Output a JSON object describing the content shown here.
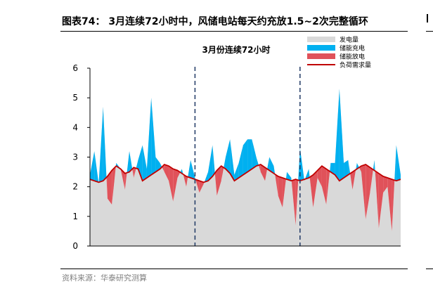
{
  "figure": {
    "title": "图表74： 3月连续72小时中，风储电站每天约充放1.5~2次完整循环",
    "source": "资料来源：华泰研究测算"
  },
  "chart_data": {
    "type": "area",
    "title": "3月份连续72小时",
    "xlabel": "",
    "ylabel": "",
    "ylim": [
      0,
      6
    ],
    "yticks": [
      0,
      1,
      2,
      3,
      4,
      5,
      6
    ],
    "grid": false,
    "legend_position": "top-right",
    "hours": 72,
    "day_dividers": [
      24,
      48
    ],
    "series": [
      {
        "name": "发电量",
        "kind": "area",
        "color": "#d9d9d9",
        "values": [
          2.4,
          3.2,
          2.1,
          4.7,
          1.6,
          1.4,
          2.8,
          2.6,
          1.9,
          3.2,
          2.3,
          2.9,
          3.4,
          2.6,
          5.0,
          3.0,
          2.8,
          2.5,
          2.2,
          1.5,
          2.3,
          2.6,
          2.0,
          2.9,
          2.3,
          1.8,
          2.1,
          2.5,
          3.4,
          1.7,
          2.2,
          3.0,
          3.6,
          2.4,
          2.8,
          3.4,
          3.6,
          3.6,
          3.0,
          2.5,
          2.2,
          3.0,
          2.7,
          1.7,
          1.3,
          2.5,
          2.3,
          0.7,
          3.3,
          2.2,
          2.6,
          1.3,
          2.3,
          2.0,
          1.4,
          2.8,
          2.8,
          5.3,
          2.8,
          2.9,
          1.9,
          2.8,
          2.5,
          0.9,
          1.8,
          2.9,
          0.6,
          1.8,
          2.0,
          0.5,
          3.4,
          2.4
        ]
      },
      {
        "name": "储能充电",
        "kind": "fill",
        "color": "#00b0f0"
      },
      {
        "name": "储能放电",
        "kind": "fill",
        "color": "#e0525a"
      },
      {
        "name": "负荷需求量",
        "kind": "line",
        "color": "#c00000",
        "values": [
          2.25,
          2.2,
          2.15,
          2.2,
          2.35,
          2.55,
          2.7,
          2.6,
          2.45,
          2.5,
          2.65,
          2.6,
          2.2,
          2.3,
          2.4,
          2.5,
          2.6,
          2.75,
          2.7,
          2.6,
          2.55,
          2.45,
          2.35,
          2.3,
          2.25,
          2.2,
          2.15,
          2.2,
          2.35,
          2.55,
          2.7,
          2.6,
          2.45,
          2.2,
          2.3,
          2.4,
          2.5,
          2.6,
          2.7,
          2.75,
          2.65,
          2.55,
          2.45,
          2.35,
          2.3,
          2.25,
          2.2,
          2.25,
          2.2,
          2.25,
          2.3,
          2.4,
          2.55,
          2.7,
          2.6,
          2.5,
          2.4,
          2.2,
          2.3,
          2.4,
          2.5,
          2.6,
          2.7,
          2.75,
          2.65,
          2.55,
          2.45,
          2.35,
          2.3,
          2.25,
          2.2,
          2.25
        ]
      }
    ]
  }
}
